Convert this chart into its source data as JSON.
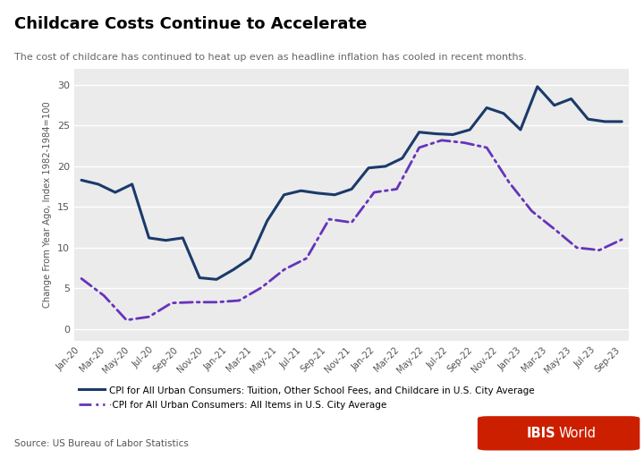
{
  "title": "Childcare Costs Continue to Accelerate",
  "subtitle": "The cost of childcare has continued to heat up even as headline inflation has cooled in recent months.",
  "source": "Source: US Bureau of Labor Statistics",
  "ylabel": "Change From Year Ago, Index 1982-1984=100",
  "ylim": [
    -1.5,
    32
  ],
  "yticks": [
    0,
    5,
    10,
    15,
    20,
    25,
    30
  ],
  "legend1_label": "CPI for All Urban Consumers: Tuition, Other School Fees, and Childcare in U.S. City Average",
  "legend2_label": "·CPI for All Urban Consumers: All Items in U.S. City Average",
  "line1_color": "#1b3a6b",
  "line2_color": "#6633bb",
  "ibis_red": "#cc1f00",
  "x_labels": [
    "Jan-20",
    "Mar-20",
    "May-20",
    "Jul-20",
    "Sep-20",
    "Nov-20",
    "Jan-21",
    "Mar-21",
    "May-21",
    "Jul-21",
    "Sep-21",
    "Nov-21",
    "Jan-22",
    "Mar-22",
    "May-22",
    "Jul-22",
    "Sep-22",
    "Nov-22",
    "Jan-23",
    "Mar-23",
    "May-23",
    "Jul-23",
    "Sep-23"
  ],
  "childcare_values": [
    18.3,
    17.8,
    16.8,
    17.8,
    11.2,
    10.9,
    11.2,
    6.3,
    6.1,
    7.3,
    8.7,
    13.3,
    16.5,
    17.0,
    16.7,
    16.5,
    17.2,
    19.8,
    20.0,
    21.0,
    24.2,
    24.0,
    23.9,
    24.5,
    27.2,
    26.5,
    24.5,
    29.8,
    27.5,
    28.3,
    25.8,
    25.5,
    25.5
  ],
  "cpi_values": [
    6.2,
    4.1,
    1.1,
    1.5,
    3.2,
    3.3,
    3.3,
    3.5,
    5.1,
    7.3,
    8.7,
    13.5,
    13.1,
    16.8,
    17.2,
    22.3,
    23.2,
    22.9,
    22.3,
    18.0,
    14.5,
    12.3,
    10.0,
    9.7,
    11.0
  ]
}
